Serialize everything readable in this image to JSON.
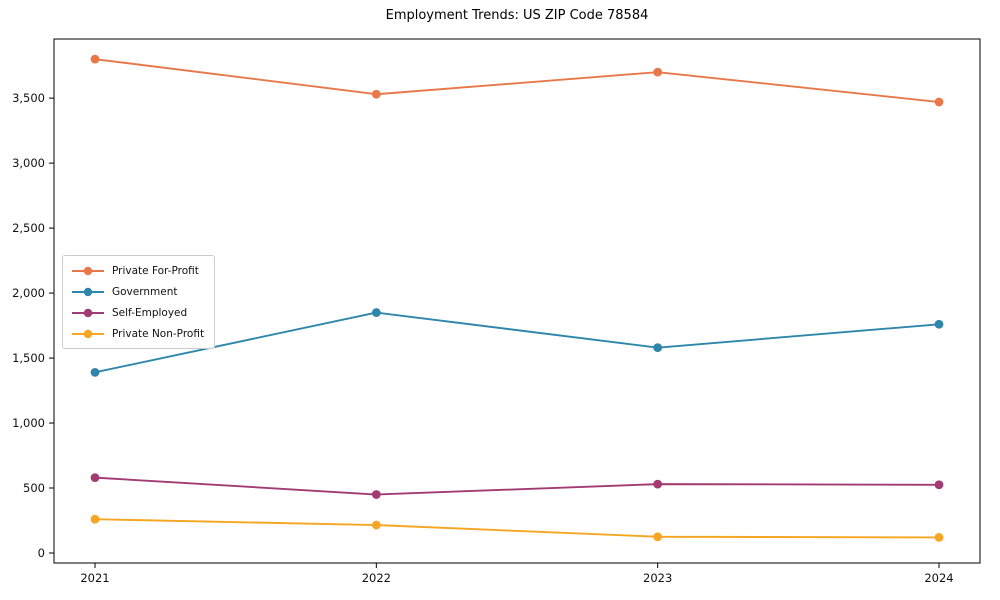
{
  "title": "Employment Trends: US ZIP Code 78584",
  "chart_data": {
    "type": "line",
    "x": [
      2021,
      2022,
      2023,
      2024
    ],
    "xtick_labels": [
      "2021",
      "2022",
      "2023",
      "2024"
    ],
    "series": [
      {
        "name": "Private For-Profit",
        "color": "#E8784A",
        "values": [
          3800,
          3530,
          3700,
          3470
        ]
      },
      {
        "name": "Government",
        "color": "#2E86AB",
        "values": [
          1390,
          1850,
          1580,
          1760
        ]
      },
      {
        "name": "Self-Employed",
        "color": "#A23B72",
        "values": [
          580,
          450,
          530,
          525
        ]
      },
      {
        "name": "Private Non-Profit",
        "color": "#F5A623",
        "values": [
          260,
          215,
          125,
          120
        ]
      }
    ],
    "yticks": [
      0,
      500,
      1000,
      1500,
      2000,
      2500,
      3000,
      3500
    ],
    "ytick_labels": [
      "0",
      "500",
      "1,000",
      "1,500",
      "2,000",
      "2,500",
      "3,000",
      "3,500"
    ],
    "ylim": [
      -77,
      3955
    ],
    "xlabel": "",
    "ylabel": "",
    "grid": false,
    "legend_position": "center-left",
    "marker": "circle",
    "axis_color": "#000000"
  }
}
